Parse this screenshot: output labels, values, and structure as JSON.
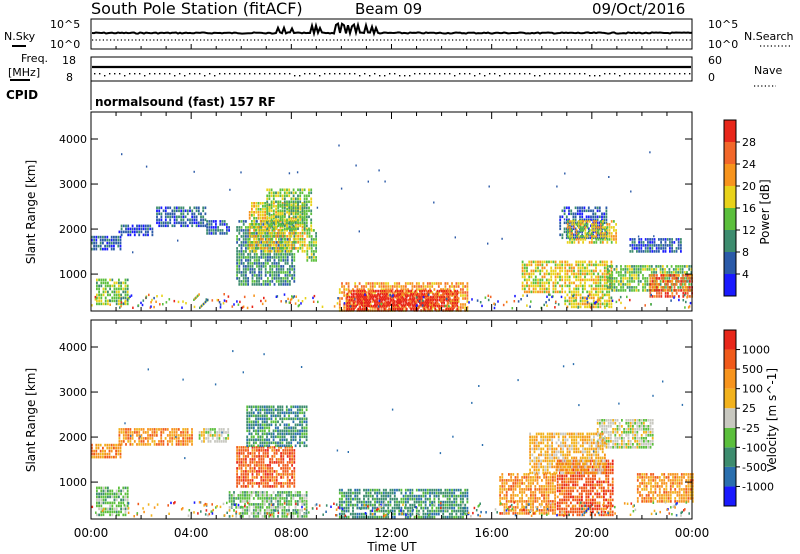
{
  "header": {
    "title": "South Pole Station (fitACF)",
    "beam": "Beam 09",
    "date": "09/Oct/2016"
  },
  "top_panels": {
    "nsky_label": "N.Sky",
    "nsky_ticks": [
      "10^5",
      "10^0"
    ],
    "nsearch_label": "N.Search",
    "nsearch_ticks": [
      "10^5",
      "10^0"
    ],
    "freq_label_1": "Freq.",
    "freq_label_2": "[MHz]",
    "freq_ticks": [
      "18",
      "8"
    ],
    "nave_label": "Nave",
    "nave_ticks": [
      "60",
      "0"
    ],
    "cpid_label": "CPID",
    "cpid_text": "normalsound (fast) 157 RF"
  },
  "chart_data": [
    {
      "type": "heatmap",
      "name": "power",
      "xlabel": "",
      "ylabel": "Slant Range [km]",
      "y_ticks": [
        "1000",
        "2000",
        "3000",
        "4000"
      ],
      "ylim": [
        180,
        4600
      ],
      "xlim_hours": [
        0,
        24
      ],
      "colorbar": {
        "label": "Power [dB]",
        "levels": [
          "4",
          "8",
          "12",
          "16",
          "20",
          "24",
          "28"
        ],
        "colors": [
          "#1a1aff",
          "#2b5aa8",
          "#3d8c6e",
          "#5bbf3c",
          "#e8d21a",
          "#f7941d",
          "#f2672a",
          "#e8271a"
        ]
      },
      "regions": [
        {
          "t0": 0.0,
          "t1": 1.2,
          "r0": 1550,
          "r1": 1850,
          "level": 1
        },
        {
          "t0": 1.1,
          "t1": 2.5,
          "r0": 1850,
          "r1": 2100,
          "level": 1
        },
        {
          "t0": 2.6,
          "t1": 4.6,
          "r0": 2050,
          "r1": 2500,
          "level": 1
        },
        {
          "t0": 0.2,
          "t1": 1.5,
          "r0": 350,
          "r1": 900,
          "level": 3
        },
        {
          "t0": 4.6,
          "t1": 5.5,
          "r0": 1900,
          "r1": 2200,
          "level": 1
        },
        {
          "t0": 5.8,
          "t1": 8.1,
          "r0": 800,
          "r1": 2200,
          "level": 2
        },
        {
          "t0": 6.3,
          "t1": 8.5,
          "r0": 1500,
          "r1": 2600,
          "level": 4
        },
        {
          "t0": 7.0,
          "t1": 8.8,
          "r0": 2000,
          "r1": 2900,
          "level": 3
        },
        {
          "t0": 8.6,
          "t1": 9.0,
          "r0": 1300,
          "r1": 2000,
          "level": 3
        },
        {
          "t0": 9.9,
          "t1": 15.0,
          "r0": 200,
          "r1": 820,
          "level": 5
        },
        {
          "t0": 10.2,
          "t1": 14.6,
          "r0": 250,
          "r1": 650,
          "level": 7
        },
        {
          "t0": 10.6,
          "t1": 13.5,
          "r0": 300,
          "r1": 550,
          "level": 8
        },
        {
          "t0": 17.2,
          "t1": 18.8,
          "r0": 600,
          "r1": 1300,
          "level": 4
        },
        {
          "t0": 18.7,
          "t1": 20.6,
          "r0": 1800,
          "r1": 2500,
          "level": 1
        },
        {
          "t0": 19.0,
          "t1": 21.0,
          "r0": 1700,
          "r1": 2200,
          "level": 4
        },
        {
          "t0": 18.9,
          "t1": 20.8,
          "r0": 300,
          "r1": 1300,
          "level": 4
        },
        {
          "t0": 20.6,
          "t1": 24.0,
          "r0": 650,
          "r1": 1200,
          "level": 3
        },
        {
          "t0": 22.3,
          "t1": 24.0,
          "r0": 500,
          "r1": 1000,
          "level": 6
        },
        {
          "t0": 21.5,
          "t1": 23.6,
          "r0": 1500,
          "r1": 1800,
          "level": 1
        }
      ]
    },
    {
      "type": "heatmap",
      "name": "velocity",
      "xlabel": "Time UT",
      "ylabel": "Slant Range [km]",
      "y_ticks": [
        "1000",
        "2000",
        "3000",
        "4000"
      ],
      "ylim": [
        180,
        4600
      ],
      "xlim_hours": [
        0,
        24
      ],
      "x_ticks": [
        "00:00",
        "04:00",
        "08:00",
        "12:00",
        "16:00",
        "20:00",
        "00:00"
      ],
      "colorbar": {
        "label": "Velocity [m s^-1]",
        "levels": [
          "1000",
          "500",
          "100",
          "25",
          "-25",
          "-100",
          "-500",
          "-1000"
        ],
        "colors": [
          "#1a1aff",
          "#2b6fae",
          "#3d8c6e",
          "#5bbf3c",
          "#c8c8c0",
          "#f2b21d",
          "#f7941d",
          "#f05a1a",
          "#e8271a"
        ]
      },
      "regions": [
        {
          "t0": 0.0,
          "t1": 1.2,
          "r0": 1550,
          "r1": 1850,
          "level": 6
        },
        {
          "t0": 1.1,
          "t1": 4.0,
          "r0": 1850,
          "r1": 2200,
          "level": 6
        },
        {
          "t0": 0.2,
          "t1": 1.5,
          "r0": 250,
          "r1": 900,
          "level": 3
        },
        {
          "t0": 4.3,
          "t1": 5.5,
          "r0": 1900,
          "r1": 2200,
          "level": 4
        },
        {
          "t0": 5.8,
          "t1": 8.1,
          "r0": 900,
          "r1": 1800,
          "level": 7
        },
        {
          "t0": 6.2,
          "t1": 8.6,
          "r0": 1800,
          "r1": 2700,
          "level": 2
        },
        {
          "t0": 5.5,
          "t1": 8.6,
          "r0": 250,
          "r1": 800,
          "level": 3
        },
        {
          "t0": 9.9,
          "t1": 15.0,
          "r0": 200,
          "r1": 850,
          "level": 2
        },
        {
          "t0": 16.3,
          "t1": 18.5,
          "r0": 300,
          "r1": 1200,
          "level": 6
        },
        {
          "t0": 18.6,
          "t1": 20.8,
          "r0": 300,
          "r1": 1500,
          "level": 7
        },
        {
          "t0": 20.2,
          "t1": 22.4,
          "r0": 1800,
          "r1": 2400,
          "level": 4
        },
        {
          "t0": 21.8,
          "t1": 24.0,
          "r0": 600,
          "r1": 1200,
          "level": 6
        },
        {
          "t0": 17.5,
          "t1": 20.5,
          "r0": 1200,
          "r1": 2100,
          "level": 5
        }
      ]
    }
  ]
}
